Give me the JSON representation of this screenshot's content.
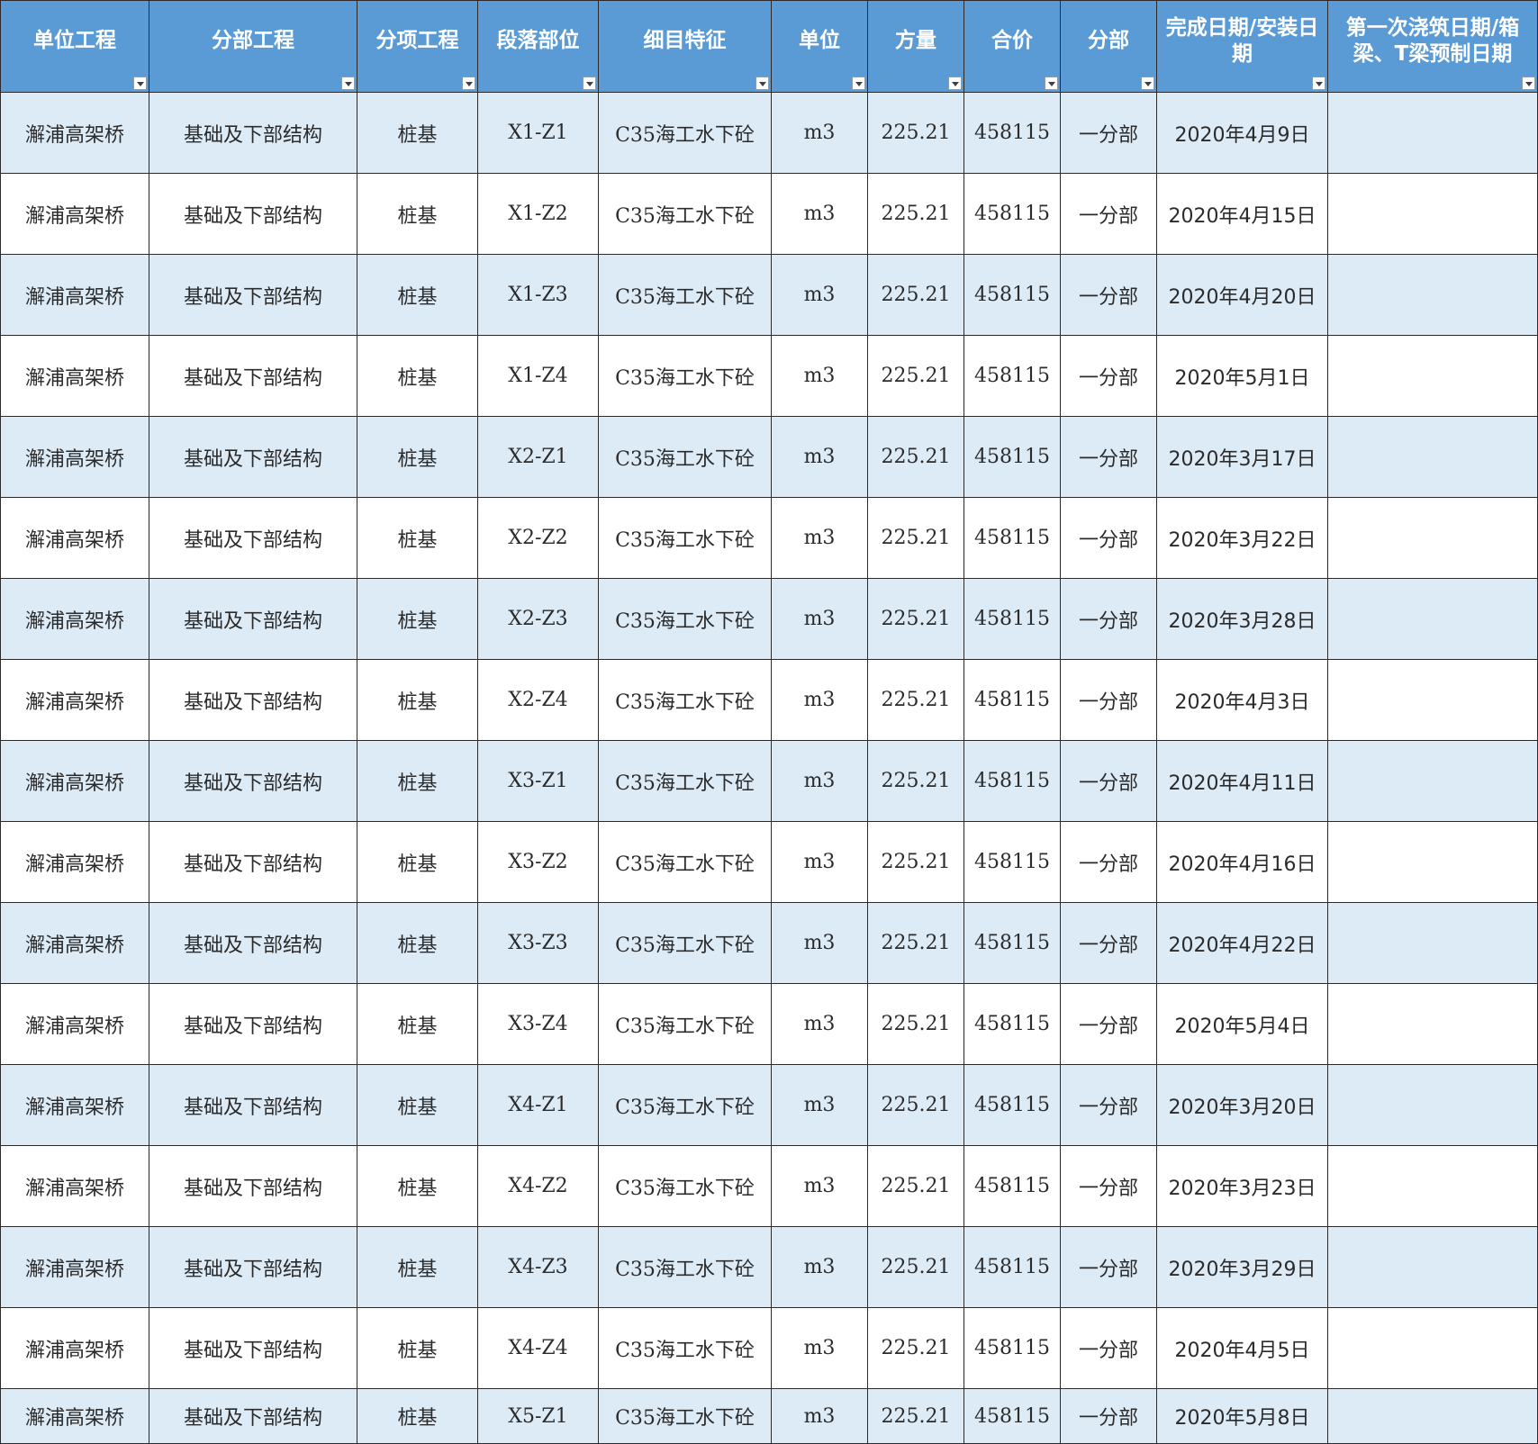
{
  "headers": [
    "单位工程",
    "分部工程",
    "分项工程",
    "段落部位",
    "细目特征",
    "单位",
    "方量",
    "合价",
    "分部",
    "完成日期/安装日期",
    "第一次浇筑日期/箱梁、T梁预制日期"
  ],
  "rows": [
    [
      "澥浦高架桥",
      "基础及下部结构",
      "桩基",
      "X1-Z1",
      "C35海工水下砼",
      "m3",
      "225.21",
      "458115",
      "一分部",
      "2020年4月9日",
      ""
    ],
    [
      "澥浦高架桥",
      "基础及下部结构",
      "桩基",
      "X1-Z2",
      "C35海工水下砼",
      "m3",
      "225.21",
      "458115",
      "一分部",
      "2020年4月15日",
      ""
    ],
    [
      "澥浦高架桥",
      "基础及下部结构",
      "桩基",
      "X1-Z3",
      "C35海工水下砼",
      "m3",
      "225.21",
      "458115",
      "一分部",
      "2020年4月20日",
      ""
    ],
    [
      "澥浦高架桥",
      "基础及下部结构",
      "桩基",
      "X1-Z4",
      "C35海工水下砼",
      "m3",
      "225.21",
      "458115",
      "一分部",
      "2020年5月1日",
      ""
    ],
    [
      "澥浦高架桥",
      "基础及下部结构",
      "桩基",
      "X2-Z1",
      "C35海工水下砼",
      "m3",
      "225.21",
      "458115",
      "一分部",
      "2020年3月17日",
      ""
    ],
    [
      "澥浦高架桥",
      "基础及下部结构",
      "桩基",
      "X2-Z2",
      "C35海工水下砼",
      "m3",
      "225.21",
      "458115",
      "一分部",
      "2020年3月22日",
      ""
    ],
    [
      "澥浦高架桥",
      "基础及下部结构",
      "桩基",
      "X2-Z3",
      "C35海工水下砼",
      "m3",
      "225.21",
      "458115",
      "一分部",
      "2020年3月28日",
      ""
    ],
    [
      "澥浦高架桥",
      "基础及下部结构",
      "桩基",
      "X2-Z4",
      "C35海工水下砼",
      "m3",
      "225.21",
      "458115",
      "一分部",
      "2020年4月3日",
      ""
    ],
    [
      "澥浦高架桥",
      "基础及下部结构",
      "桩基",
      "X3-Z1",
      "C35海工水下砼",
      "m3",
      "225.21",
      "458115",
      "一分部",
      "2020年4月11日",
      ""
    ],
    [
      "澥浦高架桥",
      "基础及下部结构",
      "桩基",
      "X3-Z2",
      "C35海工水下砼",
      "m3",
      "225.21",
      "458115",
      "一分部",
      "2020年4月16日",
      ""
    ],
    [
      "澥浦高架桥",
      "基础及下部结构",
      "桩基",
      "X3-Z3",
      "C35海工水下砼",
      "m3",
      "225.21",
      "458115",
      "一分部",
      "2020年4月22日",
      ""
    ],
    [
      "澥浦高架桥",
      "基础及下部结构",
      "桩基",
      "X3-Z4",
      "C35海工水下砼",
      "m3",
      "225.21",
      "458115",
      "一分部",
      "2020年5月4日",
      ""
    ],
    [
      "澥浦高架桥",
      "基础及下部结构",
      "桩基",
      "X4-Z1",
      "C35海工水下砼",
      "m3",
      "225.21",
      "458115",
      "一分部",
      "2020年3月20日",
      ""
    ],
    [
      "澥浦高架桥",
      "基础及下部结构",
      "桩基",
      "X4-Z2",
      "C35海工水下砼",
      "m3",
      "225.21",
      "458115",
      "一分部",
      "2020年3月23日",
      ""
    ],
    [
      "澥浦高架桥",
      "基础及下部结构",
      "桩基",
      "X4-Z3",
      "C35海工水下砼",
      "m3",
      "225.21",
      "458115",
      "一分部",
      "2020年3月29日",
      ""
    ],
    [
      "澥浦高架桥",
      "基础及下部结构",
      "桩基",
      "X4-Z4",
      "C35海工水下砼",
      "m3",
      "225.21",
      "458115",
      "一分部",
      "2020年4月5日",
      ""
    ],
    [
      "澥浦高架桥",
      "基础及下部结构",
      "桩基",
      "X5-Z1",
      "C35海工水下砼",
      "m3",
      "225.21",
      "458115",
      "一分部",
      "2020年5月8日",
      ""
    ]
  ],
  "colors": {
    "header_bg": "#5b9bd5",
    "header_text": "#ffffff",
    "band_row_bg": "#ddebf7",
    "plain_row_bg": "#ffffff",
    "grid_line": "#2b2b2b"
  },
  "icons": {
    "filter": "filter-dropdown-icon"
  }
}
